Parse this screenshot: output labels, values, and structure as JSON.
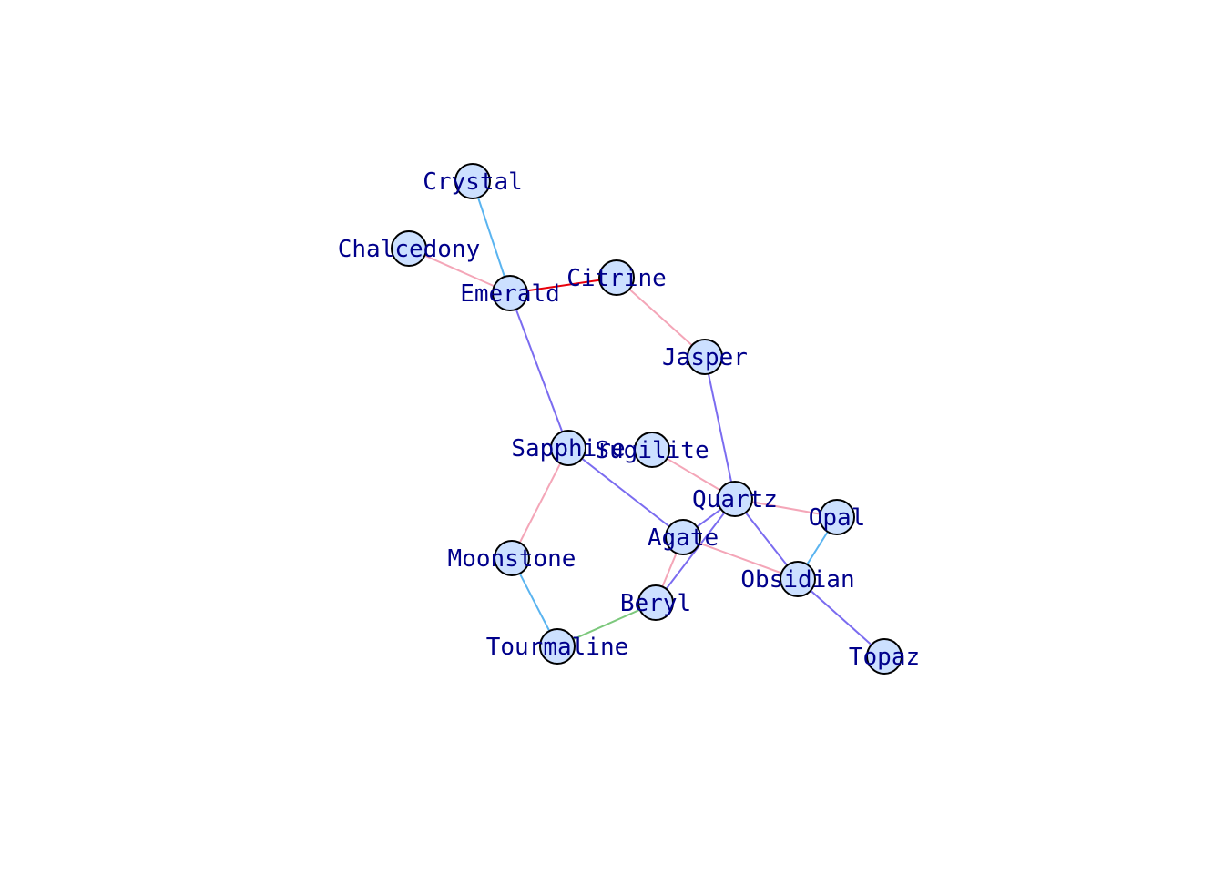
{
  "graph": {
    "node_fill": "#cce0ff",
    "label_color": "#00008b",
    "nodes": [
      {
        "id": "Crystal",
        "label": "Crystal"
      },
      {
        "id": "Chalcedony",
        "label": "Chalcedony"
      },
      {
        "id": "Emerald",
        "label": "Emerald"
      },
      {
        "id": "Citrine",
        "label": "Citrine"
      },
      {
        "id": "Jasper",
        "label": "Jasper"
      },
      {
        "id": "Sapphire",
        "label": "Sapphire"
      },
      {
        "id": "Sugilite",
        "label": "Sugilite"
      },
      {
        "id": "Quartz",
        "label": "Quartz"
      },
      {
        "id": "Opal",
        "label": "Opal"
      },
      {
        "id": "Agate",
        "label": "Agate"
      },
      {
        "id": "Moonstone",
        "label": "Moonstone"
      },
      {
        "id": "Obsidian",
        "label": "Obsidian"
      },
      {
        "id": "Beryl",
        "label": "Beryl"
      },
      {
        "id": "Tourmaline",
        "label": "Tourmaline"
      },
      {
        "id": "Topaz",
        "label": "Topaz"
      }
    ],
    "edges": [
      {
        "source": "Crystal",
        "target": "Emerald",
        "color": "#5ab4f0"
      },
      {
        "source": "Chalcedony",
        "target": "Emerald",
        "color": "#f4a6b8"
      },
      {
        "source": "Emerald",
        "target": "Citrine",
        "color": "#e8000b"
      },
      {
        "source": "Citrine",
        "target": "Jasper",
        "color": "#f4a6b8"
      },
      {
        "source": "Emerald",
        "target": "Sapphire",
        "color": "#7b6cf0"
      },
      {
        "source": "Jasper",
        "target": "Quartz",
        "color": "#7b6cf0"
      },
      {
        "source": "Sapphire",
        "target": "Agate",
        "color": "#7b6cf0"
      },
      {
        "source": "Sapphire",
        "target": "Moonstone",
        "color": "#f4a6b8"
      },
      {
        "source": "Sugilite",
        "target": "Quartz",
        "color": "#f4a6b8"
      },
      {
        "source": "Quartz",
        "target": "Opal",
        "color": "#f4a6b8"
      },
      {
        "source": "Quartz",
        "target": "Agate",
        "color": "#7b6cf0"
      },
      {
        "source": "Quartz",
        "target": "Beryl",
        "color": "#7b6cf0"
      },
      {
        "source": "Quartz",
        "target": "Obsidian",
        "color": "#7b6cf0"
      },
      {
        "source": "Opal",
        "target": "Obsidian",
        "color": "#5ab4f0"
      },
      {
        "source": "Agate",
        "target": "Obsidian",
        "color": "#f4a6b8"
      },
      {
        "source": "Agate",
        "target": "Beryl",
        "color": "#f4a6b8"
      },
      {
        "source": "Moonstone",
        "target": "Tourmaline",
        "color": "#5ab4f0"
      },
      {
        "source": "Tourmaline",
        "target": "Beryl",
        "color": "#7cc87c"
      },
      {
        "source": "Obsidian",
        "target": "Topaz",
        "color": "#7b6cf0"
      }
    ]
  }
}
